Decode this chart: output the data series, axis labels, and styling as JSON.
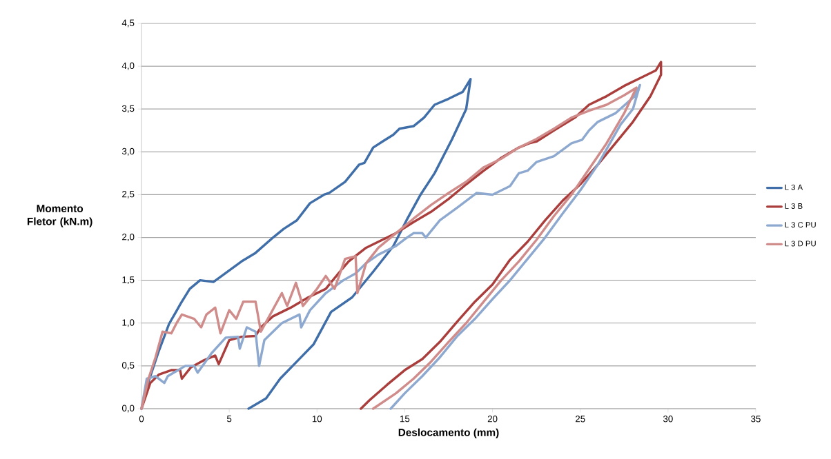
{
  "chart_data": {
    "type": "line",
    "xlabel": "Deslocamento (mm)",
    "ylabel": "Momento Fletor (kN.m)",
    "xlim": [
      0,
      35
    ],
    "xticks": [
      0,
      5,
      10,
      15,
      20,
      25,
      30,
      35
    ],
    "ylim": [
      0,
      4.5
    ],
    "yticks": [
      {
        "value": 0,
        "label": "0,0"
      },
      {
        "value": 0.5,
        "label": "0,5"
      },
      {
        "value": 1,
        "label": "1,0"
      },
      {
        "value": 1.5,
        "label": "1,5"
      },
      {
        "value": 2,
        "label": "2,0"
      },
      {
        "value": 2.5,
        "label": "2,5"
      },
      {
        "value": 3,
        "label": "3,0"
      },
      {
        "value": 3.5,
        "label": "3,5"
      },
      {
        "value": 4,
        "label": "4,0"
      },
      {
        "value": 4.5,
        "label": "4,5"
      }
    ],
    "grid": "y",
    "legend": "right",
    "marker": "none",
    "line_style": "solid",
    "series": [
      {
        "name": "L 3 A",
        "color": "#3f6ea8",
        "x": [
          0,
          0.39,
          0.98,
          1.57,
          2.24,
          2.75,
          3.34,
          4.1,
          4.9,
          5.7,
          6.5,
          7.5,
          8.1,
          8.85,
          9.6,
          10.4,
          10.7,
          11.6,
          12.4,
          12.7,
          13.2,
          13.8,
          14.35,
          14.7,
          15.5,
          16.1,
          16.7,
          17.5,
          18.3,
          18.75,
          18.5,
          17.7,
          16.7,
          15.9,
          15.1,
          14.35,
          13.2,
          12.0,
          10.8,
          9.8,
          8.85,
          7.9,
          7.1,
          6.1
        ],
        "values": [
          0,
          0.31,
          0.67,
          0.99,
          1.23,
          1.4,
          1.5,
          1.48,
          1.6,
          1.72,
          1.82,
          2.0,
          2.1,
          2.2,
          2.4,
          2.5,
          2.52,
          2.65,
          2.85,
          2.87,
          3.05,
          3.13,
          3.2,
          3.27,
          3.3,
          3.4,
          3.55,
          3.62,
          3.7,
          3.85,
          3.5,
          3.15,
          2.75,
          2.5,
          2.2,
          1.9,
          1.6,
          1.3,
          1.13,
          0.75,
          0.55,
          0.35,
          0.12,
          0.0
        ]
      },
      {
        "name": "L 3 B",
        "color": "#aa3e3c",
        "x": [
          0,
          0.5,
          1,
          1.7,
          2.2,
          2.3,
          2.8,
          3.5,
          4.2,
          4.4,
          5,
          5.7,
          6.5,
          6.8,
          7.5,
          8.5,
          9.5,
          10.5,
          11.3,
          11.8,
          12.8,
          13.5,
          14.5,
          15.5,
          16.5,
          17.5,
          18.5,
          19.5,
          20.5,
          21.5,
          22.1,
          22.5,
          23.5,
          24.7,
          25.5,
          26.5,
          27.5,
          28.5,
          29.3,
          29.6,
          29.6,
          29,
          28,
          27,
          26,
          25,
          24,
          23,
          22,
          21,
          20,
          19,
          18,
          17,
          16,
          15,
          14,
          13,
          12.5
        ],
        "values": [
          0,
          0.3,
          0.4,
          0.45,
          0.45,
          0.35,
          0.48,
          0.56,
          0.62,
          0.52,
          0.8,
          0.84,
          0.85,
          0.95,
          1.08,
          1.18,
          1.3,
          1.4,
          1.6,
          1.72,
          1.88,
          1.95,
          2.05,
          2.18,
          2.3,
          2.45,
          2.62,
          2.78,
          2.93,
          3.05,
          3.1,
          3.12,
          3.25,
          3.4,
          3.55,
          3.65,
          3.77,
          3.87,
          3.95,
          4.05,
          3.9,
          3.65,
          3.35,
          3.1,
          2.85,
          2.62,
          2.43,
          2.2,
          1.95,
          1.74,
          1.45,
          1.25,
          1.02,
          0.78,
          0.58,
          0.45,
          0.28,
          0.1,
          0.0
        ]
      },
      {
        "name": "L 3 C PU",
        "color": "#8ea9d0",
        "x": [
          0,
          0.3,
          0.8,
          1.3,
          1.5,
          2.5,
          3.0,
          3.2,
          4,
          4.8,
          5.5,
          5.6,
          6,
          6.5,
          6.7,
          7,
          8,
          9,
          9.1,
          9.6,
          10.5,
          11.5,
          12.2,
          12.8,
          13.5,
          14,
          14.5,
          15,
          15.5,
          16,
          16.2,
          17,
          18,
          19.1,
          20,
          21,
          21.5,
          22,
          22.5,
          23.5,
          24.5,
          25.1,
          25.5,
          26,
          27,
          28.1,
          28.4,
          28,
          27.3,
          26,
          25,
          24,
          23,
          22,
          21,
          20,
          19,
          18,
          17,
          16,
          15,
          14.2
        ],
        "values": [
          0,
          0.35,
          0.38,
          0.3,
          0.38,
          0.5,
          0.5,
          0.42,
          0.65,
          0.83,
          0.84,
          0.7,
          0.95,
          0.9,
          0.5,
          0.8,
          1.0,
          1.1,
          0.95,
          1.15,
          1.35,
          1.5,
          1.58,
          1.7,
          1.8,
          1.85,
          1.9,
          1.98,
          2.05,
          2.05,
          2.0,
          2.2,
          2.35,
          2.52,
          2.5,
          2.6,
          2.75,
          2.78,
          2.88,
          2.95,
          3.1,
          3.14,
          3.25,
          3.35,
          3.45,
          3.65,
          3.78,
          3.5,
          3.32,
          2.85,
          2.55,
          2.28,
          2.0,
          1.75,
          1.5,
          1.28,
          1.05,
          0.85,
          0.6,
          0.38,
          0.18,
          0.0
        ]
      },
      {
        "name": "L 3 D PU",
        "color": "#d08c8a",
        "x": [
          0,
          0.4,
          0.8,
          1.2,
          1.7,
          2.0,
          2.3,
          3,
          3.4,
          3.7,
          4.2,
          4.5,
          5,
          5.4,
          5.8,
          6.5,
          6.8,
          7.2,
          8.0,
          8.3,
          8.8,
          9.2,
          10,
          10.5,
          11,
          11.6,
          12.2,
          12.3,
          12.8,
          13.5,
          14.5,
          15.5,
          16.5,
          17.5,
          18.5,
          19.5,
          20.5,
          21.5,
          22.5,
          23.5,
          24.5,
          25.5,
          26.5,
          27.5,
          28.2,
          27.5,
          26.5,
          25.5,
          24.5,
          23.5,
          22.5,
          21.5,
          20.5,
          19.5,
          18.5,
          17.5,
          16.5,
          15.5,
          14.5,
          13.2
        ],
        "values": [
          0,
          0.35,
          0.6,
          0.9,
          0.88,
          1.0,
          1.1,
          1.05,
          0.95,
          1.1,
          1.18,
          0.88,
          1.15,
          1.05,
          1.25,
          1.25,
          0.9,
          1.05,
          1.35,
          1.2,
          1.47,
          1.2,
          1.4,
          1.55,
          1.4,
          1.75,
          1.78,
          1.35,
          1.7,
          1.88,
          2.05,
          2.22,
          2.38,
          2.52,
          2.65,
          2.82,
          2.92,
          3.05,
          3.15,
          3.27,
          3.4,
          3.48,
          3.55,
          3.66,
          3.75,
          3.45,
          3.1,
          2.8,
          2.5,
          2.25,
          1.97,
          1.72,
          1.5,
          1.25,
          1.0,
          0.78,
          0.55,
          0.35,
          0.18,
          0.0
        ]
      }
    ]
  }
}
